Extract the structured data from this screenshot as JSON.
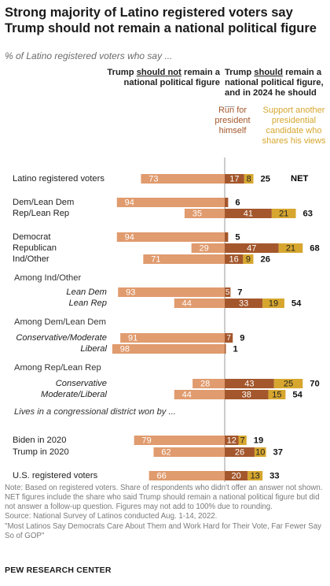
{
  "title": "Strong majority of Latino registered voters say Trump should not remain a national political figure",
  "subtitle": "% of Latino registered voters who say ...",
  "headers": {
    "left_pre": "Trump ",
    "left_underline": "should not",
    "left_post": " remain a national political figure",
    "right_pre": "Trump ",
    "right_underline": "should",
    "right_post": " remain a national political figure, and in 2024 he should __",
    "run_for_president": "Run for president himself",
    "support_another": "Support another presidential candidate who shares his views",
    "net": "NET"
  },
  "colors": {
    "not_remain": "#e09b6e",
    "run_himself": "#a4572c",
    "support_another": "#d6a62f",
    "axis": "#999999",
    "group_label": "#333333"
  },
  "chart_data": {
    "type": "bar",
    "orientation": "horizontal-diverging",
    "series_names": [
      "Trump should not remain a national political figure",
      "Run for president himself",
      "Support another presidential candidate who shares his views",
      "NET"
    ],
    "rows": [
      {
        "kind": "data",
        "label": "Latino registered voters",
        "italic": false,
        "not_remain": 73,
        "run_himself": 17,
        "support_another": 8,
        "net": 25
      },
      {
        "kind": "data",
        "label": "Dem/Lean Dem",
        "italic": false,
        "not_remain": 94,
        "run_himself": 3,
        "support_another": null,
        "net": 6
      },
      {
        "kind": "data",
        "label": "Rep/Lean Rep",
        "italic": false,
        "not_remain": 35,
        "run_himself": 41,
        "support_another": 21,
        "net": 63
      },
      {
        "kind": "data",
        "label": "Democrat",
        "italic": false,
        "not_remain": 94,
        "run_himself": 3,
        "support_another": null,
        "net": 5
      },
      {
        "kind": "data",
        "label": "Republican",
        "italic": false,
        "not_remain": 29,
        "run_himself": 47,
        "support_another": 21,
        "net": 68
      },
      {
        "kind": "data",
        "label": "Ind/Other",
        "italic": false,
        "not_remain": 71,
        "run_himself": 16,
        "support_another": 9,
        "net": 26
      },
      {
        "kind": "group",
        "label": "Among Ind/Other"
      },
      {
        "kind": "data",
        "label": "Lean Dem",
        "italic": true,
        "not_remain": 93,
        "run_himself": 5,
        "support_another": null,
        "net": 7
      },
      {
        "kind": "data",
        "label": "Lean Rep",
        "italic": true,
        "not_remain": 44,
        "run_himself": 33,
        "support_another": 19,
        "net": 54
      },
      {
        "kind": "group",
        "label": "Among Dem/Lean Dem"
      },
      {
        "kind": "data",
        "label": "Conservative/Moderate",
        "italic": true,
        "not_remain": 91,
        "run_himself": 7,
        "support_another": null,
        "net": 9
      },
      {
        "kind": "data",
        "label": "Liberal",
        "italic": true,
        "not_remain": 98,
        "run_himself": 1,
        "support_another": null,
        "net": 1
      },
      {
        "kind": "group",
        "label": "Among Rep/Lean Rep"
      },
      {
        "kind": "data",
        "label": "Conservative",
        "italic": true,
        "not_remain": 28,
        "run_himself": 43,
        "support_another": 25,
        "net": 70
      },
      {
        "kind": "data",
        "label": "Moderate/Liberal",
        "italic": true,
        "not_remain": 44,
        "run_himself": 38,
        "support_another": 15,
        "net": 54
      },
      {
        "kind": "group",
        "label": "Lives in a congressional district won by ...",
        "italic": true
      },
      {
        "kind": "data",
        "label": "Biden in 2020",
        "italic": false,
        "not_remain": 79,
        "run_himself": 12,
        "support_another": 7,
        "net": 19
      },
      {
        "kind": "data",
        "label": "Trump in 2020",
        "italic": false,
        "not_remain": 62,
        "run_himself": 26,
        "support_another": 10,
        "net": 37
      },
      {
        "kind": "data",
        "label": "U.S. registered voters",
        "italic": false,
        "not_remain": 66,
        "run_himself": 20,
        "support_another": 13,
        "net": 33
      }
    ],
    "xlim": [
      0,
      100
    ]
  },
  "notes": {
    "note": "Note: Based on registered voters. Share of respondents who didn't offer an answer not shown. NET figures include the share who said Trump should remain a national political figure but did not answer a follow-up question.  Figures may not add to 100% due to rounding.",
    "source": "Source: National Survey of Latinos conducted Aug. 1-14, 2022.",
    "report": "\"Most Latinos Say Democrats Care About Them and Work Hard for Their Vote, Far Fewer Say So of GOP\"",
    "org": "PEW RESEARCH CENTER"
  }
}
